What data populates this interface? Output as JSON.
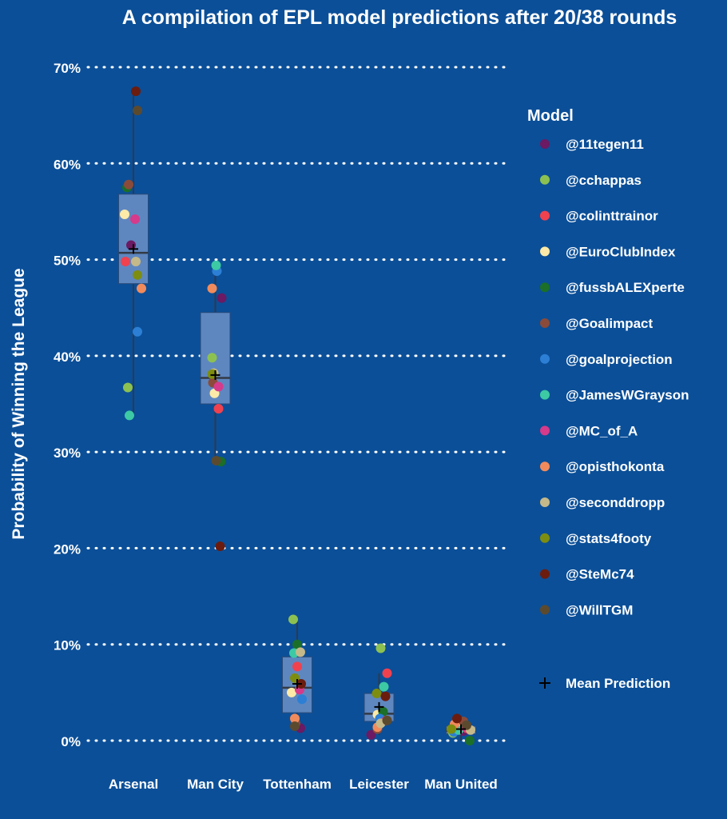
{
  "chart_data": {
    "type": "box-jitter",
    "title": "A compilation of EPL model predictions after 20/38 rounds",
    "xlabel": "",
    "ylabel": "Probability of Winning the League",
    "ylim": [
      0,
      70
    ],
    "yticks": [
      0,
      10,
      20,
      30,
      40,
      50,
      60,
      70
    ],
    "ytick_labels": [
      "0%",
      "10%",
      "20%",
      "30%",
      "40%",
      "50%",
      "60%",
      "70%"
    ],
    "grid": "horizontal dotted",
    "legend_title": "Model",
    "legend_position": "right",
    "mean_label": "Mean Prediction",
    "categories": [
      "Arsenal",
      "Man City",
      "Tottenham",
      "Leicester",
      "Man United"
    ],
    "boxes": [
      {
        "q1": 47.5,
        "median": 50.7,
        "q3": 56.8,
        "whisker_low": 33.8,
        "whisker_high": 67.5,
        "mean": 51.1
      },
      {
        "q1": 35.0,
        "median": 37.7,
        "q3": 44.5,
        "whisker_low": 29.0,
        "whisker_high": 49.5,
        "mean": 38.0
      },
      {
        "q1": 2.9,
        "median": 5.5,
        "q3": 8.7,
        "whisker_low": 1.3,
        "whisker_high": 12.6,
        "mean": 5.9
      },
      {
        "q1": 2.0,
        "median": 2.8,
        "q3": 4.9,
        "whisker_low": 0.6,
        "whisker_high": 7.0,
        "mean": 3.5
      },
      {
        "q1": 0.7,
        "median": 1.0,
        "q3": 1.5,
        "whisker_low": 0.0,
        "whisker_high": 2.3,
        "mean": 1.2
      }
    ],
    "series": [
      {
        "name": "@11tegen11",
        "color": "#6b1a63",
        "values": [
          51.5,
          46.0,
          1.3,
          0.6,
          1.0
        ]
      },
      {
        "name": "@cchappas",
        "color": "#8cc152",
        "values": [
          36.7,
          39.8,
          12.6,
          9.6,
          0.8
        ]
      },
      {
        "name": "@colinttrainor",
        "color": "#f0414f",
        "values": [
          49.8,
          34.5,
          7.7,
          7.0,
          1.3
        ]
      },
      {
        "name": "@EuroClubIndex",
        "color": "#fdeaa8",
        "values": [
          54.7,
          36.1,
          5.0,
          2.7,
          1.5
        ]
      },
      {
        "name": "@fussbALEXperte",
        "color": "#1b6f28",
        "values": [
          57.5,
          29.0,
          10.0,
          3.0,
          0.0
        ]
      },
      {
        "name": "@Goalimpact",
        "color": "#8a4b3a",
        "values": [
          57.8,
          37.2,
          1.8,
          1.2,
          2.0
        ]
      },
      {
        "name": "@goalprojection",
        "color": "#2c7fd4",
        "values": [
          42.5,
          48.8,
          4.3,
          2.3,
          0.9
        ]
      },
      {
        "name": "@JamesWGrayson",
        "color": "#3cc9a4",
        "values": [
          33.8,
          49.4,
          9.1,
          5.6,
          1.1
        ]
      },
      {
        "name": "@MC_of_A",
        "color": "#d63a8a",
        "values": [
          54.2,
          36.8,
          5.3,
          2.1,
          1.4
        ]
      },
      {
        "name": "@opisthokonta",
        "color": "#f28b5c",
        "values": [
          47.0,
          47.0,
          2.3,
          1.4,
          1.7
        ]
      },
      {
        "name": "@seconddropp",
        "color": "#c5b98a",
        "values": [
          49.8,
          38.2,
          9.2,
          1.8,
          1.1
        ]
      },
      {
        "name": "@stats4footy",
        "color": "#7d8d10",
        "values": [
          48.4,
          38.1,
          6.5,
          4.9,
          1.2
        ]
      },
      {
        "name": "@SteMc74",
        "color": "#6b1c0e",
        "values": [
          67.5,
          20.2,
          5.9,
          4.6,
          2.3
        ]
      },
      {
        "name": "@WillTGM",
        "color": "#5c4a2f",
        "values": [
          65.5,
          29.1,
          1.5,
          2.1,
          1.6
        ]
      }
    ]
  }
}
